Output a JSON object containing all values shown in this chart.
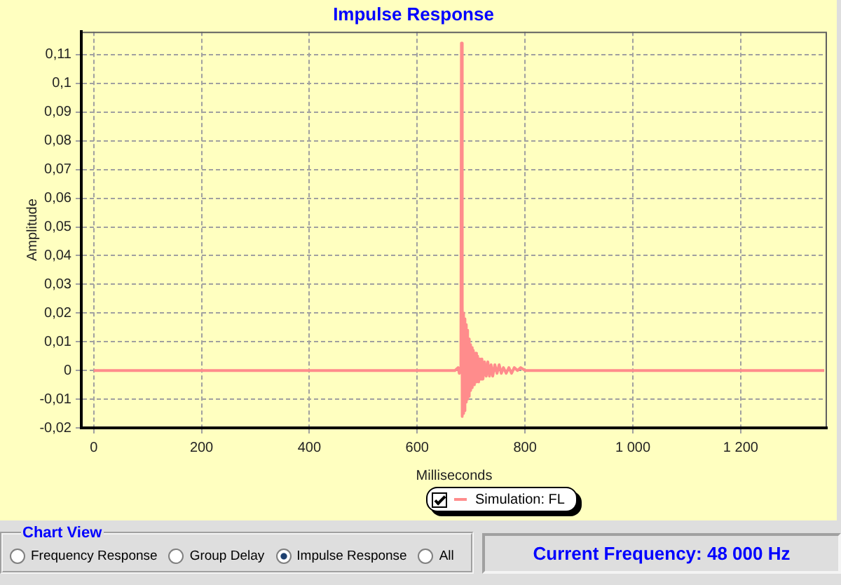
{
  "chart_data": {
    "type": "line",
    "title": "Impulse Response",
    "xlabel": "Milliseconds",
    "ylabel": "Amplitude",
    "x": [
      0,
      670,
      676,
      678,
      681,
      682,
      683,
      684,
      685,
      686,
      687,
      688,
      689,
      690,
      691,
      692,
      693,
      694,
      695,
      696,
      697,
      698,
      699,
      700,
      702,
      704,
      706,
      708,
      710,
      712,
      714,
      716,
      718,
      720,
      722,
      725,
      728,
      731,
      734,
      737,
      740,
      744,
      748,
      752,
      756,
      760,
      765,
      770,
      775,
      780,
      786,
      792,
      800,
      1355
    ],
    "series": [
      {
        "name": "Simulation: FL",
        "color": "#ff8c8c",
        "values": [
          0,
          0,
          0.001,
          -0.001,
          0,
          0.114,
          -0.016,
          0.023,
          -0.015,
          0.02,
          -0.014,
          0.018,
          -0.012,
          0.016,
          -0.011,
          0.014,
          -0.01,
          0.012,
          -0.009,
          0.011,
          -0.008,
          0.009,
          -0.007,
          0.008,
          -0.006,
          0.007,
          -0.005,
          0.006,
          -0.004,
          0.005,
          -0.004,
          0.004,
          -0.003,
          0.004,
          -0.003,
          0.003,
          -0.002,
          0.003,
          -0.002,
          0.002,
          -0.002,
          0.002,
          -0.001,
          0.002,
          -0.001,
          0.001,
          -0.001,
          0.001,
          -0.001,
          0.001,
          0,
          0.001,
          0,
          0
        ]
      }
    ],
    "xlim": [
      -23,
      1360
    ],
    "xticks": [
      0,
      200,
      400,
      600,
      800,
      {
        "value": 1000,
        "label": "1 000"
      },
      {
        "value": 1200,
        "label": "1 200"
      }
    ],
    "ylim": [
      -0.02,
      0.118
    ],
    "yticks": [
      {
        "value": -0.02,
        "label": "-0,02"
      },
      {
        "value": -0.01,
        "label": "-0,01"
      },
      0,
      {
        "value": 0.01,
        "label": "0,01"
      },
      {
        "value": 0.02,
        "label": "0,02"
      },
      {
        "value": 0.03,
        "label": "0,03"
      },
      {
        "value": 0.04,
        "label": "0,04"
      },
      {
        "value": 0.05,
        "label": "0,05"
      },
      {
        "value": 0.06,
        "label": "0,06"
      },
      {
        "value": 0.07,
        "label": "0,07"
      },
      {
        "value": 0.08,
        "label": "0,08"
      },
      {
        "value": 0.09,
        "label": "0,09"
      },
      {
        "value": 0.1,
        "label": "0,1"
      },
      {
        "value": 0.11,
        "label": "0,11"
      }
    ],
    "grid": true,
    "legend": "bottom",
    "marker": "none",
    "annotations": [
      "Chart View",
      "Frequency Response",
      "Group Delay",
      "Impulse Response",
      "All",
      "Current Frequency: 48 000 Hz"
    ]
  }
}
